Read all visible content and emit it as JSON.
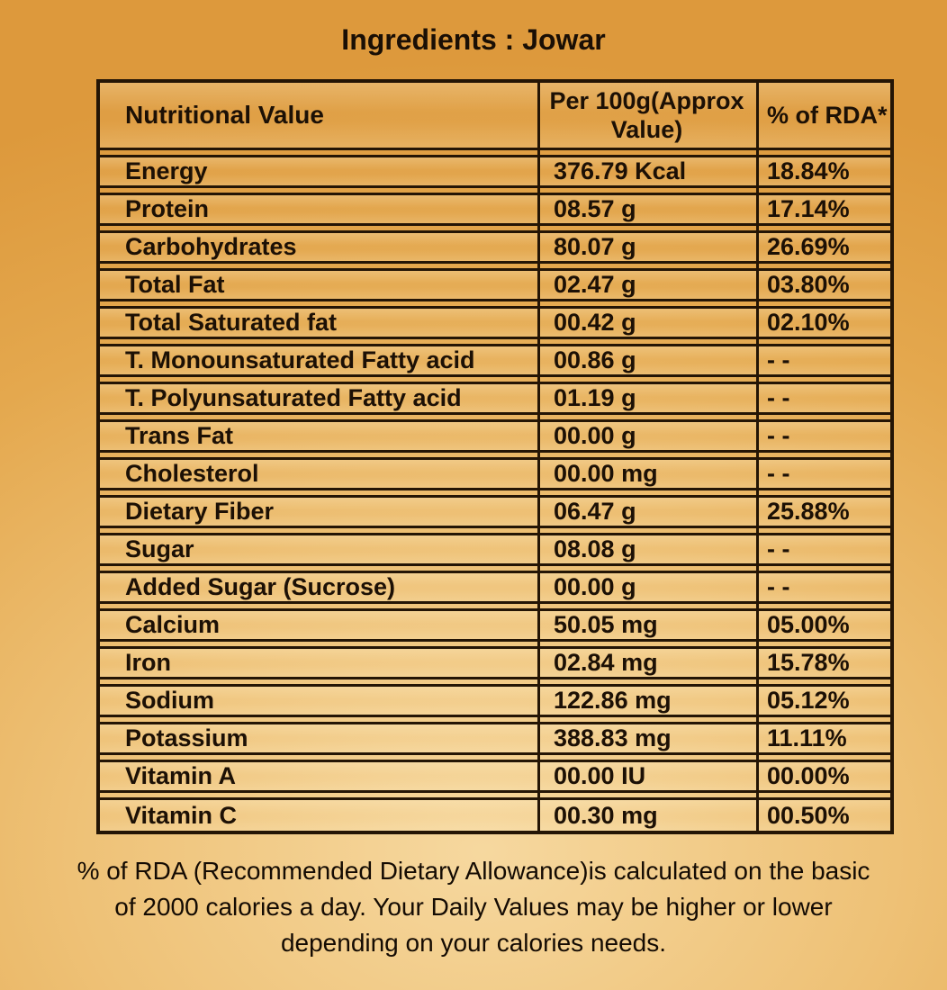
{
  "title": "Ingredients : Jowar",
  "colors": {
    "background_edge": "#dd993c",
    "background_center": "#f6d89f",
    "border": "#241505",
    "text": "#1c1005"
  },
  "table": {
    "headers": {
      "nutritional_value": "Nutritional Value",
      "per_100g": "Per 100g(Approx Value)",
      "rda": "% of RDA*"
    },
    "rows": [
      {
        "label": "Energy",
        "value": "376.79 Kcal",
        "rda": "18.84%"
      },
      {
        "label": "Protein",
        "value": "08.57 g",
        "rda": "17.14%"
      },
      {
        "label": "Carbohydrates",
        "value": "80.07 g",
        "rda": "26.69%"
      },
      {
        "label": "Total Fat",
        "value": "02.47 g",
        "rda": "03.80%"
      },
      {
        "label": "Total Saturated fat",
        "value": "00.42 g",
        "rda": "02.10%"
      },
      {
        "label": "T. Monounsaturated Fatty acid",
        "value": "00.86 g",
        "rda": "- -"
      },
      {
        "label": "T. Polyunsaturated Fatty acid",
        "value": "01.19 g",
        "rda": "- -"
      },
      {
        "label": "Trans Fat",
        "value": "00.00 g",
        "rda": "- -"
      },
      {
        "label": "Cholesterol",
        "value": "00.00 mg",
        "rda": "- -"
      },
      {
        "label": "Dietary Fiber",
        "value": "06.47 g",
        "rda": "25.88%"
      },
      {
        "label": "Sugar",
        "value": "08.08 g",
        "rda": "- -"
      },
      {
        "label": "Added Sugar (Sucrose)",
        "value": "00.00 g",
        "rda": "- -"
      },
      {
        "label": "Calcium",
        "value": "50.05 mg",
        "rda": "05.00%"
      },
      {
        "label": "Iron",
        "value": "02.84 mg",
        "rda": "15.78%"
      },
      {
        "label": "Sodium",
        "value": "122.86 mg",
        "rda": "05.12%"
      },
      {
        "label": "Potassium",
        "value": "388.83 mg",
        "rda": "11.11%"
      },
      {
        "label": "Vitamin A",
        "value": "00.00 IU",
        "rda": "00.00%"
      },
      {
        "label": "Vitamin C",
        "value": "00.30 mg",
        "rda": "00.50%"
      }
    ]
  },
  "footer": {
    "lines": [
      "% of RDA (Recommended Dietary Allowance)is calculated on the basic",
      "of 2000 calories a day. Your Daily Values may be higher or lower",
      "depending on your calories needs."
    ]
  }
}
